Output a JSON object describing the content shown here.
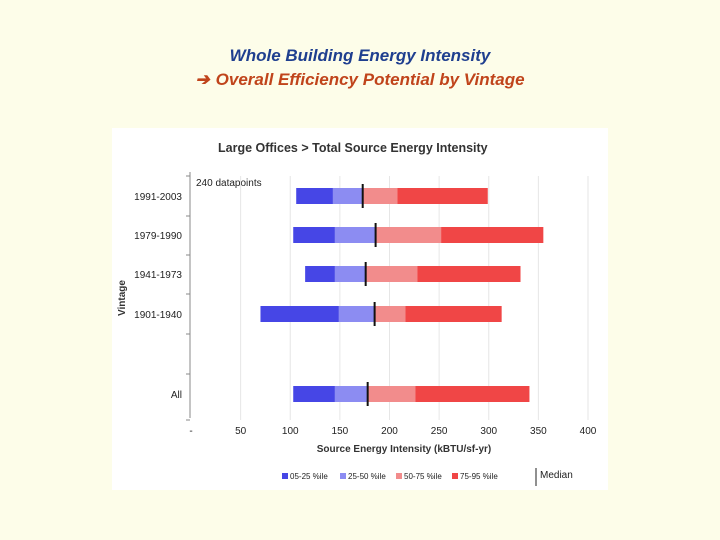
{
  "slide": {
    "title_line1": "Whole Building Energy Intensity",
    "title_line2": "Overall Efficiency Potential by Vintage",
    "arrow": "➔"
  },
  "chart_data": {
    "type": "bar",
    "subtype": "stacked-horizontal-range",
    "title": "Large Offices > Total Source Energy Intensity",
    "annotation": "240 datapoints",
    "xlabel": "Source Energy Intensity (kBTU/sf-yr)",
    "ylabel": "Vintage",
    "xlim": [
      0,
      400
    ],
    "xticks": [
      "-",
      "50",
      "100",
      "150",
      "200",
      "250",
      "300",
      "350",
      "400"
    ],
    "categories": [
      "1991-2003",
      "1979-1990",
      "1941-1973",
      "1901-1940",
      "All"
    ],
    "series": [
      {
        "name": "05-25 %ile",
        "color": "#4646e6"
      },
      {
        "name": "25-50 %ile",
        "color": "#8c8cf2"
      },
      {
        "name": "50-75 %ile",
        "color": "#f28c8c"
      },
      {
        "name": "75-95 %ile",
        "color": "#f04646"
      }
    ],
    "percentiles": [
      {
        "category": "1991-2003",
        "p05": 106,
        "p25": 143,
        "p50": 173,
        "p75": 208,
        "p95": 299
      },
      {
        "category": "1979-1990",
        "p05": 103,
        "p25": 145,
        "p50": 186,
        "p75": 252,
        "p95": 355
      },
      {
        "category": "1941-1973",
        "p05": 115,
        "p25": 145,
        "p50": 176,
        "p75": 228,
        "p95": 332
      },
      {
        "category": "1901-1940",
        "p05": 70,
        "p25": 149,
        "p50": 185,
        "p75": 216,
        "p95": 313
      },
      {
        "category": "All",
        "p05": 103,
        "p25": 145,
        "p50": 178,
        "p75": 226,
        "p95": 341
      }
    ],
    "median_label": "Median",
    "gridlines": true,
    "legend_position": "bottom"
  }
}
